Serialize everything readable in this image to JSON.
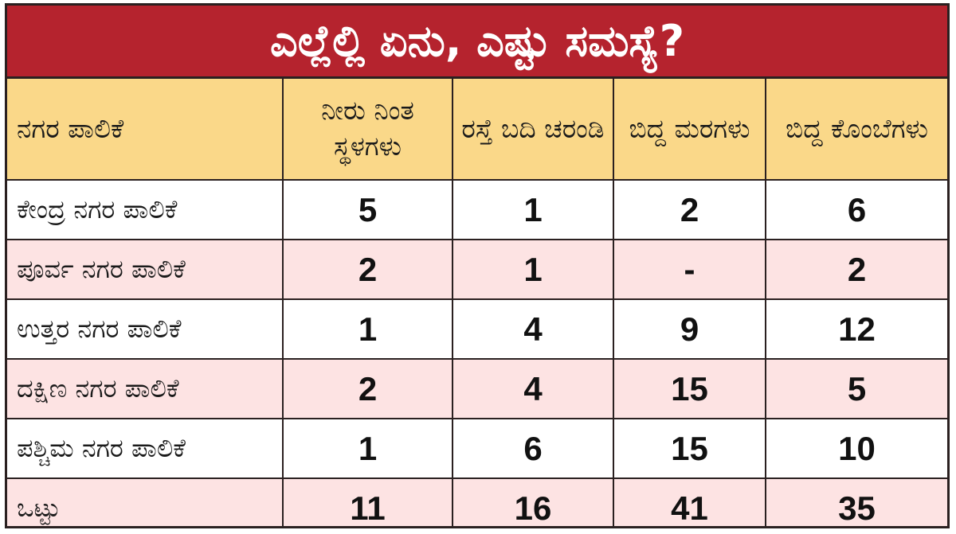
{
  "title": "ಎಲ್ಲೆಲ್ಲಿ ಏನು, ಎಷ್ಟು ಸಮಸ್ಯೆ?",
  "colors": {
    "title_bg": "#b5232e",
    "header_bg": "#fad889",
    "row_alt_bg": "#fde3e3",
    "border": "#2a2020"
  },
  "headers": [
    "ನಗರ ಪಾಲಿಕೆ",
    "ನೀರು ನಿಂತ ಸ್ಥಳಗಳು",
    "ರಸ್ತೆ ಬದಿ ಚರಂಡಿ",
    "ಬಿದ್ದ ಮರಗಳು",
    "ಬಿದ್ದ ಕೊಂಬೆಗಳು"
  ],
  "rows": [
    [
      "ಕೇಂದ್ರ ನಗರ ಪಾಲಿಕೆ",
      "5",
      "1",
      "2",
      "6"
    ],
    [
      "ಪೂರ್ವ ನಗರ ಪಾಲಿಕೆ",
      "2",
      "1",
      "-",
      "2"
    ],
    [
      "ಉತ್ತರ ನಗರ ಪಾಲಿಕೆ",
      "1",
      "4",
      "9",
      "12"
    ],
    [
      "ದಕ್ಷಿಣ ನಗರ ಪಾಲಿಕೆ",
      "2",
      "4",
      "15",
      "5"
    ],
    [
      "ಪಶ್ಚಿಮ ನಗರ ಪಾಲಿಕೆ",
      "1",
      "6",
      "15",
      "10"
    ],
    [
      "ಒಟ್ಟು",
      "11",
      "16",
      "41",
      "35"
    ]
  ]
}
